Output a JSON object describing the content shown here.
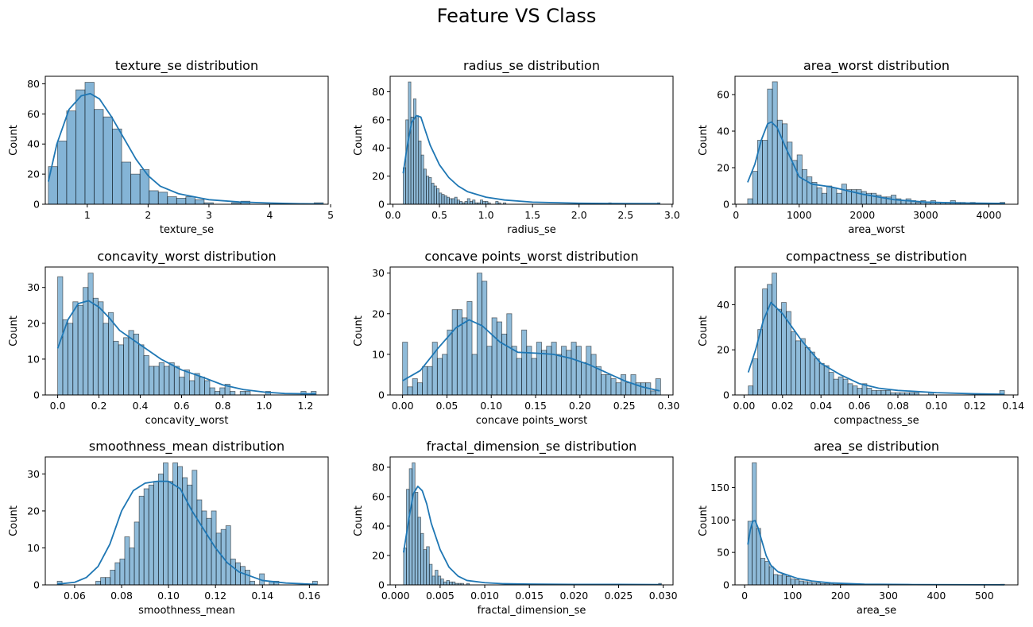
{
  "figure": {
    "suptitle": "Feature VS Class",
    "bar_color": "#1f77b4",
    "bar_fill_opacity": 0.5,
    "kde_color": "#1f77b4"
  },
  "chart_data": [
    {
      "type": "bar",
      "title": "texture_se distribution",
      "xlabel": "texture_se",
      "ylabel": "Count",
      "xlim": [
        0.31,
        4.96
      ],
      "ylim": [
        0,
        85
      ],
      "xticks": [
        1,
        2,
        3,
        4,
        5
      ],
      "yticks": [
        0,
        20,
        40,
        60,
        80
      ],
      "bin_range": [
        0.36,
        4.88
      ],
      "counts": [
        25,
        42,
        62,
        76,
        81,
        63,
        58,
        50,
        28,
        20,
        23,
        9,
        8,
        5,
        4,
        5,
        3,
        1,
        0,
        0,
        1,
        2,
        0,
        0,
        0,
        0,
        0,
        0,
        0,
        1
      ],
      "opaque": true,
      "kde": {
        "x": [
          0.36,
          0.5,
          0.7,
          0.9,
          1.05,
          1.2,
          1.4,
          1.6,
          1.8,
          2.0,
          2.2,
          2.5,
          3.0,
          3.5,
          4.0,
          4.5,
          4.88
        ],
        "y": [
          15,
          40,
          63,
          72,
          73.5,
          70,
          58,
          44,
          30,
          19,
          12,
          7,
          3,
          1.5,
          0.8,
          0.3,
          0.2
        ]
      }
    },
    {
      "type": "bar",
      "title": "radius_se distribution",
      "xlabel": "radius_se",
      "ylabel": "Count",
      "xlim": [
        -0.03,
        3.01
      ],
      "ylim": [
        0,
        91
      ],
      "xticks": [
        0.0,
        0.5,
        1.0,
        1.5,
        2.0,
        2.5,
        3.0
      ],
      "yticks": [
        0,
        20,
        40,
        60,
        80
      ],
      "bin_range": [
        0.11,
        2.87
      ],
      "counts": [
        26,
        60,
        87,
        62,
        75,
        63,
        45,
        35,
        25,
        20,
        19,
        15,
        13,
        11,
        8,
        7,
        6,
        5,
        4,
        4,
        5,
        3,
        2,
        1,
        2,
        4,
        2,
        3,
        1,
        1,
        3,
        2,
        2,
        1,
        0,
        0,
        2,
        1,
        0,
        1,
        0,
        0,
        0,
        0,
        0,
        0,
        0,
        0,
        0,
        0,
        0,
        0,
        0,
        0,
        0,
        0,
        0,
        0,
        0,
        0,
        0,
        0,
        0,
        0,
        0,
        0,
        0,
        0,
        0,
        0,
        0,
        0,
        0,
        0,
        0,
        0,
        0,
        0,
        0,
        0,
        1,
        0,
        0,
        0,
        0,
        0,
        0,
        0,
        0,
        0,
        0,
        0,
        0,
        0,
        0,
        0,
        0,
        0,
        0,
        1
      ],
      "kde": {
        "x": [
          0.11,
          0.15,
          0.2,
          0.25,
          0.3,
          0.35,
          0.4,
          0.5,
          0.6,
          0.7,
          0.8,
          1.0,
          1.2,
          1.5,
          2.0,
          2.5,
          2.87
        ],
        "y": [
          22,
          40,
          58,
          63,
          62,
          52,
          42,
          28,
          19,
          13,
          9,
          5,
          3,
          1.5,
          0.7,
          0.5,
          0.4
        ]
      }
    },
    {
      "type": "bar",
      "title": "area_worst distribution",
      "xlabel": "area_worst",
      "ylabel": "Count",
      "xlim": [
        -15,
        4460
      ],
      "ylim": [
        0,
        70
      ],
      "xticks": [
        0,
        1000,
        2000,
        3000,
        4000
      ],
      "yticks": [
        0,
        20,
        40,
        60
      ],
      "bin_range": [
        185,
        4254
      ],
      "counts": [
        3,
        18,
        35,
        35,
        63,
        67,
        46,
        44,
        34,
        24,
        27,
        19,
        15,
        12,
        9,
        6,
        10,
        9,
        6,
        11,
        8,
        8,
        8,
        7,
        6,
        6,
        5,
        4,
        4,
        5,
        3,
        2,
        3,
        2,
        1,
        2,
        1,
        2,
        1,
        1,
        1,
        2,
        1,
        1,
        0,
        1,
        0,
        0,
        0,
        0,
        0,
        1
      ],
      "kde": {
        "x": [
          185,
          300,
          400,
          500,
          560,
          650,
          800,
          1000,
          1200,
          1500,
          2000,
          2500,
          3000,
          3500,
          4254
        ],
        "y": [
          12,
          22,
          35,
          44,
          45,
          42,
          30,
          15,
          11,
          9.5,
          5.5,
          2.5,
          1.2,
          0.7,
          0.4
        ]
      }
    },
    {
      "type": "bar",
      "title": "concavity_worst distribution",
      "xlabel": "concavity_worst",
      "ylabel": "Count",
      "xlim": [
        -0.06,
        1.31
      ],
      "ylim": [
        0,
        35.7
      ],
      "xticks": [
        0.0,
        0.2,
        0.4,
        0.6,
        0.8,
        1.0,
        1.2
      ],
      "yticks": [
        0,
        10,
        20,
        30
      ],
      "bin_range": [
        0.0,
        1.252
      ],
      "counts": [
        33,
        21,
        20,
        26,
        25,
        30,
        34,
        27,
        26,
        20,
        23,
        15,
        14,
        16,
        18,
        17,
        14,
        11,
        8,
        8,
        9,
        8,
        9,
        8,
        5,
        7,
        4,
        6,
        5,
        4,
        2,
        1,
        2,
        3,
        1,
        0,
        1,
        1,
        0,
        0,
        0,
        1,
        0,
        0,
        0,
        0,
        0,
        0,
        1,
        0,
        1
      ],
      "kde": {
        "x": [
          0.0,
          0.05,
          0.1,
          0.15,
          0.2,
          0.25,
          0.3,
          0.4,
          0.5,
          0.6,
          0.7,
          0.8,
          0.9,
          1.0,
          1.1,
          1.25
        ],
        "y": [
          13,
          21,
          25.5,
          26.3,
          24.5,
          21.5,
          18,
          14,
          10,
          7,
          5,
          2.8,
          1.5,
          0.8,
          0.4,
          0.3
        ]
      }
    },
    {
      "type": "bar",
      "title": "concave points_worst distribution",
      "xlabel": "concave points_worst",
      "ylabel": "Count",
      "xlim": [
        -0.014,
        0.305
      ],
      "ylim": [
        0,
        31.5
      ],
      "xticks": [
        0.0,
        0.05,
        0.1,
        0.15,
        0.2,
        0.25,
        0.3
      ],
      "yticks": [
        0,
        10,
        20,
        30
      ],
      "bin_range": [
        0.0,
        0.291
      ],
      "counts": [
        13,
        2,
        4,
        3,
        7,
        7,
        13,
        9,
        10,
        16,
        21,
        21,
        19,
        23,
        10,
        30,
        28,
        12,
        19,
        18,
        15,
        20,
        12,
        9,
        16,
        12,
        9,
        13,
        11,
        12,
        13,
        10,
        12,
        11,
        13,
        12,
        8,
        12,
        10,
        7,
        5,
        5,
        4,
        3,
        5,
        3,
        5,
        3,
        3,
        3,
        1,
        4
      ],
      "kde": {
        "x": [
          0.0,
          0.02,
          0.04,
          0.06,
          0.075,
          0.09,
          0.11,
          0.13,
          0.15,
          0.17,
          0.19,
          0.21,
          0.23,
          0.25,
          0.27,
          0.29
        ],
        "y": [
          3.5,
          6,
          11.5,
          16.5,
          18.5,
          17,
          13,
          10.5,
          10.3,
          10,
          9,
          7.5,
          5.5,
          3.5,
          2,
          1
        ]
      }
    },
    {
      "type": "bar",
      "title": "compactness_se distribution",
      "xlabel": "compactness_se",
      "ylabel": "Count",
      "xlim": [
        -0.0047,
        0.1424
      ],
      "ylim": [
        0,
        56.7
      ],
      "xticks": [
        0.0,
        0.02,
        0.04,
        0.06,
        0.08,
        0.1,
        0.12,
        0.14
      ],
      "yticks": [
        0,
        20,
        40
      ],
      "bin_range": [
        0.0022,
        0.1354
      ],
      "counts": [
        4,
        16,
        29,
        47,
        49,
        54,
        38,
        41,
        37,
        28,
        24,
        25,
        21,
        19,
        16,
        14,
        13,
        10,
        7,
        8,
        7,
        5,
        4,
        3,
        5,
        3,
        2,
        2,
        2,
        2,
        1,
        1,
        1,
        1,
        1,
        1,
        0,
        0,
        1,
        0,
        0,
        0,
        0,
        0,
        0,
        0,
        0,
        0,
        0,
        0,
        0,
        0,
        0,
        2
      ],
      "kde": {
        "x": [
          0.0022,
          0.006,
          0.01,
          0.014,
          0.02,
          0.03,
          0.04,
          0.05,
          0.06,
          0.07,
          0.08,
          0.1,
          0.12,
          0.1354
        ],
        "y": [
          10,
          20,
          33,
          41,
          36,
          24,
          14,
          9,
          5,
          3,
          2,
          1,
          0.5,
          0.3
        ]
      }
    },
    {
      "type": "bar",
      "title": "smoothness_mean distribution",
      "xlabel": "smoothness_mean",
      "ylabel": "Count",
      "xlim": [
        0.0475,
        0.168
      ],
      "ylim": [
        0,
        34.6
      ],
      "xticks": [
        0.06,
        0.08,
        0.1,
        0.12,
        0.14,
        0.16
      ],
      "yticks": [
        0,
        10,
        20,
        30
      ],
      "bin_range": [
        0.0526,
        0.1634
      ],
      "counts": [
        1,
        0,
        0,
        0,
        0,
        0,
        0,
        0,
        1,
        2,
        2,
        4,
        6,
        7,
        13,
        10,
        17,
        24,
        26,
        27,
        28,
        30,
        33,
        28,
        33,
        32,
        29,
        27,
        31,
        23,
        20,
        18,
        20,
        14,
        15,
        16,
        7,
        6,
        5,
        4,
        1,
        0,
        3,
        0,
        1,
        1,
        0,
        0,
        0,
        0,
        0,
        0,
        0,
        1
      ],
      "kde": {
        "x": [
          0.0526,
          0.06,
          0.065,
          0.07,
          0.075,
          0.08,
          0.085,
          0.09,
          0.095,
          0.1,
          0.105,
          0.11,
          0.115,
          0.12,
          0.125,
          0.13,
          0.14,
          0.15,
          0.1634
        ],
        "y": [
          0.2,
          0.7,
          2,
          5,
          11,
          20,
          25.5,
          27.5,
          28,
          28,
          26,
          20,
          15,
          10,
          6,
          3.5,
          1.2,
          0.5,
          0.1
        ]
      }
    },
    {
      "type": "bar",
      "title": "fractal_dimension_se distribution",
      "xlabel": "fractal_dimension_se",
      "ylabel": "Count",
      "xlim": [
        -0.0006,
        0.0311
      ],
      "ylim": [
        0,
        87
      ],
      "xticks": [
        0.0,
        0.005,
        0.01,
        0.015,
        0.02,
        0.025,
        0.03
      ],
      "yticks": [
        0,
        20,
        40,
        60,
        80
      ],
      "bin_range": [
        0.0009,
        0.0298
      ],
      "counts": [
        25,
        65,
        79,
        83,
        63,
        46,
        35,
        24,
        26,
        14,
        6,
        10,
        6,
        4,
        2,
        3,
        2,
        2,
        1,
        1,
        1,
        0,
        1,
        0,
        0,
        0,
        0,
        0,
        0,
        0,
        0,
        0,
        0,
        0,
        0,
        0,
        0,
        0,
        0,
        0,
        0,
        0,
        0,
        0,
        0,
        0,
        0,
        0,
        0,
        0,
        0,
        0,
        0,
        0,
        0,
        0,
        0,
        0,
        0,
        0,
        0,
        0,
        0,
        0,
        0,
        0,
        0,
        0,
        0,
        0,
        0,
        0,
        0,
        0,
        0,
        0,
        0,
        0,
        0,
        0,
        0,
        0,
        0,
        0,
        0,
        0,
        0,
        0,
        0,
        1
      ],
      "kde": {
        "x": [
          0.0009,
          0.0015,
          0.002,
          0.0025,
          0.003,
          0.0035,
          0.004,
          0.005,
          0.006,
          0.007,
          0.008,
          0.01,
          0.012,
          0.015,
          0.02,
          0.025,
          0.0298
        ],
        "y": [
          22,
          45,
          62,
          67,
          64,
          55,
          42,
          24,
          12,
          6,
          3,
          1.5,
          0.8,
          0.5,
          0.3,
          0.3,
          0.2
        ]
      }
    },
    {
      "type": "bar",
      "title": "area_se distribution",
      "xlabel": "area_se",
      "ylabel": "Count",
      "xlim": [
        -20,
        570
      ],
      "ylim": [
        0,
        197
      ],
      "xticks": [
        0,
        100,
        200,
        300,
        400,
        500
      ],
      "yticks": [
        0,
        50,
        100,
        150
      ],
      "bin_range": [
        6.8,
        542.2
      ],
      "counts": [
        98,
        188,
        87,
        41,
        36,
        28,
        16,
        15,
        16,
        13,
        9,
        8,
        6,
        5,
        4,
        3,
        3,
        2,
        2,
        2,
        1,
        1,
        1,
        1,
        1,
        1,
        0,
        1,
        0,
        0,
        0,
        0,
        0,
        0,
        0,
        0,
        0,
        0,
        0,
        0,
        0,
        0,
        0,
        0,
        0,
        0,
        0,
        0,
        0,
        0,
        0,
        0,
        0,
        0,
        0,
        0,
        0,
        0,
        0,
        1
      ],
      "kde": {
        "x": [
          6.8,
          12,
          17,
          22,
          28,
          35,
          45,
          55,
          70,
          90,
          110,
          140,
          180,
          250,
          350,
          450,
          542
        ],
        "y": [
          62,
          85,
          98,
          99,
          88,
          70,
          45,
          30,
          20,
          15,
          10,
          6,
          3,
          1,
          0.5,
          0.3,
          0.2
        ]
      }
    }
  ]
}
